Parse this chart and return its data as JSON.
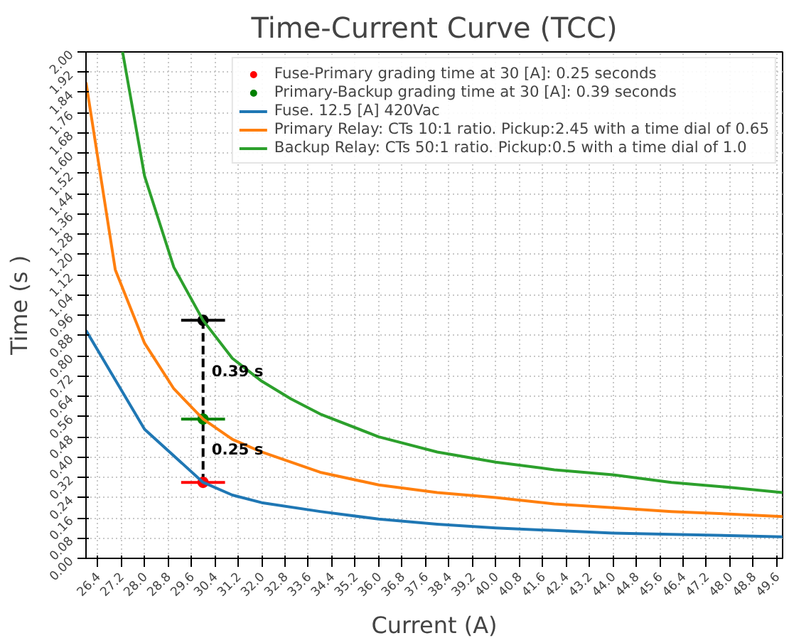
{
  "chart_data": {
    "type": "line",
    "title": "Time-Current Curve (TCC)",
    "xlabel": "Current (A)",
    "ylabel": "Time (s )",
    "xlim": [
      26,
      49.8
    ],
    "ylim": [
      0,
      2
    ],
    "xticks": [
      {
        "value": 26.4,
        "label": "26.4"
      },
      {
        "value": 27.2,
        "label": "27.2"
      },
      {
        "value": 28.0,
        "label": "28.0"
      },
      {
        "value": 28.8,
        "label": "28.8"
      },
      {
        "value": 29.6,
        "label": "29.6"
      },
      {
        "value": 30.4,
        "label": "30.4"
      },
      {
        "value": 31.2,
        "label": "31.2"
      },
      {
        "value": 32.0,
        "label": "32.0"
      },
      {
        "value": 32.8,
        "label": "32.8"
      },
      {
        "value": 33.6,
        "label": "33.6"
      },
      {
        "value": 34.4,
        "label": "34.4"
      },
      {
        "value": 35.2,
        "label": "35.2"
      },
      {
        "value": 36.0,
        "label": "36.0"
      },
      {
        "value": 36.8,
        "label": "36.8"
      },
      {
        "value": 37.6,
        "label": "37.6"
      },
      {
        "value": 38.4,
        "label": "38.4"
      },
      {
        "value": 39.2,
        "label": "39.2"
      },
      {
        "value": 40.0,
        "label": "40.0"
      },
      {
        "value": 40.8,
        "label": "40.8"
      },
      {
        "value": 41.6,
        "label": "41.6"
      },
      {
        "value": 42.4,
        "label": "42.4"
      },
      {
        "value": 43.2,
        "label": "43.2"
      },
      {
        "value": 44.0,
        "label": "44.0"
      },
      {
        "value": 44.8,
        "label": "44.8"
      },
      {
        "value": 45.6,
        "label": "45.6"
      },
      {
        "value": 46.4,
        "label": "46.4"
      },
      {
        "value": 47.2,
        "label": "47.2"
      },
      {
        "value": 48.0,
        "label": "48.0"
      },
      {
        "value": 48.8,
        "label": "48.8"
      },
      {
        "value": 49.6,
        "label": "49.6"
      }
    ],
    "yticks": [
      {
        "value": 0,
        "label": "0.00"
      },
      {
        "value": 0.08,
        "label": "0.08"
      },
      {
        "value": 0.16,
        "label": "0.16"
      },
      {
        "value": 0.24,
        "label": "0.24"
      },
      {
        "value": 0.32,
        "label": "0.32"
      },
      {
        "value": 0.4,
        "label": "0.40"
      },
      {
        "value": 0.48,
        "label": "0.48"
      },
      {
        "value": 0.56,
        "label": "0.56"
      },
      {
        "value": 0.64,
        "label": "0.64"
      },
      {
        "value": 0.72,
        "label": "0.72"
      },
      {
        "value": 0.8,
        "label": "0.80"
      },
      {
        "value": 0.88,
        "label": "0.88"
      },
      {
        "value": 0.96,
        "label": "0.96"
      },
      {
        "value": 1.04,
        "label": "1.04"
      },
      {
        "value": 1.12,
        "label": "1.12"
      },
      {
        "value": 1.2,
        "label": "1.20"
      },
      {
        "value": 1.28,
        "label": "1.28"
      },
      {
        "value": 1.36,
        "label": "1.36"
      },
      {
        "value": 1.44,
        "label": "1.44"
      },
      {
        "value": 1.52,
        "label": "1.52"
      },
      {
        "value": 1.6,
        "label": "1.60"
      },
      {
        "value": 1.68,
        "label": "1.68"
      },
      {
        "value": 1.76,
        "label": "1.76"
      },
      {
        "value": 1.84,
        "label": "1.84"
      },
      {
        "value": 1.92,
        "label": "1.92"
      },
      {
        "value": 2.0,
        "label": "2.00"
      }
    ],
    "grid": true,
    "legend": "top right",
    "series": [
      {
        "x": [
          30,
          30
        ],
        "values": [
          0.3,
          0.94
        ],
        "color": "#000000",
        "line_style": "dashed"
      },
      {
        "type": "scatter",
        "name": "Fuse-Primary grading time at 30 [A]: 0.25 seconds",
        "color": "#ff0000",
        "marker": "circle",
        "x": [
          30
        ],
        "values": [
          0.3
        ],
        "xerrors": [
          0.75
        ]
      },
      {
        "type": "scatter",
        "name": "Primary-Backup grading time at 30 [A]: 0.39 seconds",
        "color": "#008000",
        "marker": "circle",
        "x": [
          30
        ],
        "values": [
          0.55
        ],
        "xerrors": [
          0.75
        ]
      },
      {
        "type": "scatter",
        "color": "#000000",
        "marker": "circle",
        "x": [
          30
        ],
        "values": [
          0.94
        ],
        "xerrors": [
          0.75
        ]
      },
      {
        "name": "Fuse. 12.5 [A] 420Vac",
        "color": "#1f77b4",
        "x": [
          26,
          28,
          30,
          31,
          32,
          34,
          36,
          38,
          40,
          42,
          44,
          46,
          48,
          49.8
        ],
        "values": [
          0.9,
          0.51,
          0.3,
          0.25,
          0.22,
          0.185,
          0.155,
          0.135,
          0.12,
          0.11,
          0.1,
          0.095,
          0.09,
          0.085
        ]
      },
      {
        "name": "Primary Relay: CTs 10:1 ratio. Pickup:2.45 with a time dial of 0.65",
        "color": "#ff7f0e",
        "x": [
          26,
          27,
          28,
          29,
          30,
          31,
          32,
          34,
          36,
          38,
          40,
          42,
          44,
          46,
          48,
          49.8
        ],
        "values": [
          1.88,
          1.14,
          0.85,
          0.67,
          0.55,
          0.47,
          0.42,
          0.34,
          0.29,
          0.26,
          0.24,
          0.215,
          0.2,
          0.185,
          0.175,
          0.165
        ]
      },
      {
        "name": "Backup Relay: CTs 50:1 ratio. Pickup:0.5 with a time dial of 1.0",
        "color": "#2ca02c",
        "x": [
          27.25,
          28,
          29,
          30,
          31,
          32,
          33,
          34,
          36,
          38,
          40,
          42,
          44,
          46,
          48,
          49.8
        ],
        "values": [
          2.0,
          1.51,
          1.15,
          0.94,
          0.79,
          0.7,
          0.63,
          0.57,
          0.48,
          0.42,
          0.38,
          0.35,
          0.33,
          0.3,
          0.28,
          0.26
        ]
      }
    ],
    "annotations": [
      {
        "text": "0.39 s",
        "x": 30,
        "y": 0.74
      },
      {
        "text": "0.25 s",
        "x": 30,
        "y": 0.43
      }
    ]
  }
}
